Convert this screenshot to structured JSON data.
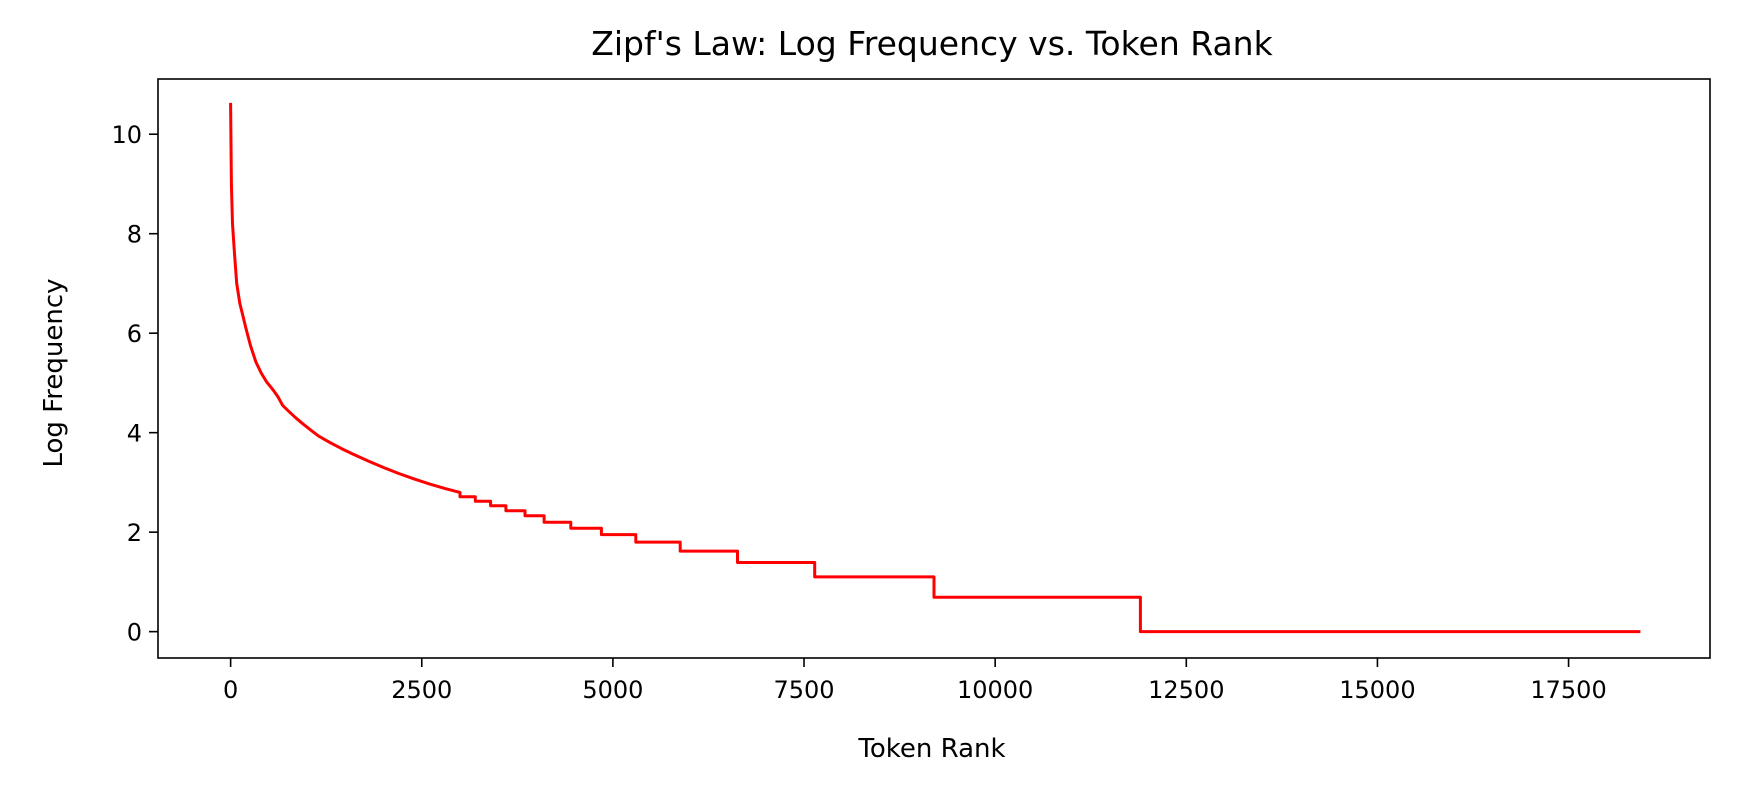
{
  "chart_data": {
    "type": "line",
    "title": "Zipf's Law: Log Frequency vs. Token Rank",
    "xlabel": "Token Rank",
    "ylabel": "Log Frequency",
    "xlim": [
      -950,
      19350
    ],
    "ylim": [
      -0.53,
      11.11
    ],
    "xticks": [
      0,
      2500,
      5000,
      7500,
      10000,
      12500,
      15000,
      17500
    ],
    "yticks": [
      0,
      2,
      4,
      6,
      8,
      10
    ],
    "grid": false,
    "legend": "none",
    "series": [
      {
        "color": "#ff0000",
        "x": [
          0,
          10,
          25,
          50,
          80,
          120,
          160,
          200,
          260,
          330,
          400,
          470,
          550,
          620,
          680,
          760,
          850,
          950,
          1050,
          1150,
          1300,
          1450,
          1600,
          1800,
          2000,
          2200,
          2400,
          2600,
          2800,
          3000,
          3000,
          3200,
          3200,
          3400,
          3400,
          3600,
          3600,
          3850,
          3850,
          4100,
          4100,
          4450,
          4450,
          4850,
          4850,
          5300,
          5300,
          5880,
          5880,
          6630,
          6630,
          7640,
          7640,
          9200,
          9200,
          11900,
          11900,
          18420
        ],
        "y": [
          10.6,
          9.0,
          8.2,
          7.6,
          7.0,
          6.6,
          6.35,
          6.1,
          5.75,
          5.42,
          5.2,
          5.02,
          4.87,
          4.72,
          4.55,
          4.43,
          4.3,
          4.17,
          4.05,
          3.93,
          3.8,
          3.68,
          3.57,
          3.43,
          3.3,
          3.18,
          3.07,
          2.97,
          2.88,
          2.8,
          2.71,
          2.71,
          2.62,
          2.62,
          2.53,
          2.53,
          2.43,
          2.43,
          2.33,
          2.33,
          2.2,
          2.2,
          2.08,
          2.08,
          1.95,
          1.95,
          1.8,
          1.8,
          1.62,
          1.62,
          1.39,
          1.39,
          1.1,
          1.1,
          0.69,
          0.69,
          0.0,
          0.0
        ]
      }
    ]
  }
}
